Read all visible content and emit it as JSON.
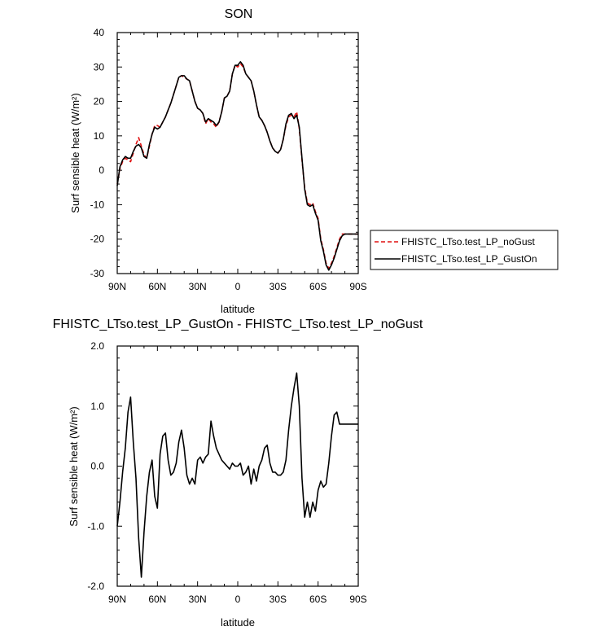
{
  "chart_data": [
    {
      "type": "line",
      "title": "SON",
      "xlabel": "latitude",
      "ylabel": "Surf sensible heat (W/m²)",
      "xlim": [
        90,
        -90
      ],
      "ylim": [
        -30,
        40
      ],
      "xticks": [
        90,
        60,
        30,
        0,
        -30,
        -60,
        -90
      ],
      "xticklabels": [
        "90N",
        "60N",
        "30N",
        "0",
        "30S",
        "60S",
        "90S"
      ],
      "yticks": [
        -30,
        -20,
        -10,
        0,
        10,
        20,
        30,
        40
      ],
      "yticklabels": [
        "-30",
        "-20",
        "-10",
        "0",
        "10",
        "20",
        "30",
        "40"
      ],
      "legend": "outside-right",
      "series": [
        {
          "name": "FHISTC_LTso.test_LP_noGust",
          "color": "#e01010",
          "dash": true,
          "x": [
            90,
            88,
            86,
            84,
            82,
            80,
            78,
            76,
            74,
            72,
            70,
            68,
            66,
            64,
            62,
            60,
            58,
            56,
            54,
            52,
            50,
            48,
            46,
            44,
            42,
            40,
            38,
            36,
            34,
            32,
            30,
            28,
            26,
            24,
            22,
            20,
            18,
            16,
            14,
            12,
            10,
            8,
            6,
            4,
            2,
            0,
            -2,
            -4,
            -6,
            -8,
            -10,
            -12,
            -14,
            -16,
            -18,
            -20,
            -22,
            -24,
            -26,
            -28,
            -30,
            -32,
            -34,
            -36,
            -38,
            -40,
            -42,
            -44,
            -46,
            -48,
            -50,
            -52,
            -54,
            -56,
            -58,
            -60,
            -62,
            -64,
            -66,
            -68,
            -70,
            -72,
            -74,
            -76,
            -78,
            -80,
            -82,
            -84,
            -86,
            -88,
            -90
          ],
          "y": [
            -4,
            0.5,
            2.5,
            3.5,
            3,
            2.5,
            5,
            7.5,
            9.5,
            7,
            4.5,
            3.5,
            7,
            10.5,
            13,
            13,
            12.5,
            14,
            15.5,
            17.5,
            19.5,
            22,
            24.5,
            27,
            27.5,
            27,
            26.5,
            26,
            23,
            20,
            18,
            17.5,
            16.5,
            13.5,
            15,
            14,
            13.5,
            12.5,
            14,
            17,
            21,
            21.5,
            23,
            28,
            30.5,
            30,
            31,
            30,
            28,
            27,
            26,
            23,
            19,
            15.5,
            14.5,
            13,
            11,
            8.5,
            6.5,
            5.5,
            5,
            6,
            9,
            13,
            15.5,
            16,
            15.5,
            17,
            12,
            3,
            -5,
            -9.5,
            -10,
            -9.5,
            -12,
            -14,
            -20,
            -23,
            -27,
            -28.5,
            -27,
            -25,
            -22.5,
            -20,
            -18.5,
            -18.5,
            -18.5,
            -18.5,
            -18.5,
            -18.5,
            -18.5
          ]
        },
        {
          "name": "FHISTC_LTso.test_LP_GustOn",
          "color": "#000000",
          "dash": false,
          "x": [
            90,
            88,
            86,
            84,
            82,
            80,
            78,
            76,
            74,
            72,
            70,
            68,
            66,
            64,
            62,
            60,
            58,
            56,
            54,
            52,
            50,
            48,
            46,
            44,
            42,
            40,
            38,
            36,
            34,
            32,
            30,
            28,
            26,
            24,
            22,
            20,
            18,
            16,
            14,
            12,
            10,
            8,
            6,
            4,
            2,
            0,
            -2,
            -4,
            -6,
            -8,
            -10,
            -12,
            -14,
            -16,
            -18,
            -20,
            -22,
            -24,
            -26,
            -28,
            -30,
            -32,
            -34,
            -36,
            -38,
            -40,
            -42,
            -44,
            -46,
            -48,
            -50,
            -52,
            -54,
            -56,
            -58,
            -60,
            -62,
            -64,
            -66,
            -68,
            -70,
            -72,
            -74,
            -76,
            -78,
            -80,
            -82,
            -84,
            -86,
            -88,
            -90
          ],
          "y": [
            -4.5,
            1,
            3,
            4,
            3.5,
            3.5,
            5.5,
            7,
            7.5,
            6.5,
            4,
            3.5,
            7.5,
            10.5,
            12.5,
            12,
            12.5,
            14,
            15.5,
            17.5,
            19.5,
            22,
            24.5,
            27,
            27.5,
            27.5,
            26.5,
            26,
            23,
            20,
            18,
            17.5,
            16.5,
            14,
            15,
            14.5,
            14,
            13,
            14,
            17,
            21,
            21.5,
            23,
            28,
            30.5,
            30.5,
            31.5,
            30.5,
            28,
            27,
            26,
            23,
            19,
            15.5,
            14.5,
            13,
            11,
            8.5,
            6.5,
            5.5,
            5,
            6,
            9,
            13.5,
            16,
            16.5,
            15,
            16,
            12.5,
            3.5,
            -5.5,
            -10,
            -10.5,
            -10,
            -12.5,
            -14.5,
            -20.5,
            -23.5,
            -27.5,
            -29,
            -27.5,
            -25.5,
            -23,
            -20.5,
            -19,
            -18.5,
            -18.5,
            -18.5,
            -18.5,
            -18.5,
            -18.5
          ]
        }
      ]
    },
    {
      "type": "line",
      "title": "FHISTC_LTso.test_LP_GustOn - FHISTC_LTso.test_LP_noGust",
      "xlabel": "latitude",
      "ylabel": "Surf sensible heat (W/m²)",
      "xlim": [
        90,
        -90
      ],
      "ylim": [
        -2.0,
        2.0
      ],
      "xticks": [
        90,
        60,
        30,
        0,
        -30,
        -60,
        -90
      ],
      "xticklabels": [
        "90N",
        "60N",
        "30N",
        "0",
        "30S",
        "60S",
        "90S"
      ],
      "yticks": [
        -2.0,
        -1.0,
        0.0,
        1.0,
        2.0
      ],
      "yticklabels": [
        "-2.0",
        "-1.0",
        "0.0",
        "1.0",
        "2.0"
      ],
      "series": [
        {
          "color": "#000000",
          "x": [
            90,
            88,
            86,
            84,
            82,
            80,
            78,
            76,
            74,
            72,
            70,
            68,
            66,
            64,
            62,
            60,
            58,
            56,
            54,
            52,
            50,
            48,
            46,
            44,
            42,
            40,
            38,
            36,
            34,
            32,
            30,
            28,
            26,
            24,
            22,
            20,
            18,
            16,
            14,
            12,
            10,
            8,
            6,
            4,
            2,
            0,
            -2,
            -4,
            -6,
            -8,
            -10,
            -12,
            -14,
            -16,
            -18,
            -20,
            -22,
            -24,
            -26,
            -28,
            -30,
            -32,
            -34,
            -36,
            -38,
            -40,
            -42,
            -44,
            -46,
            -48,
            -50,
            -52,
            -54,
            -56,
            -58,
            -60,
            -62,
            -64,
            -66,
            -68,
            -70,
            -72,
            -74,
            -76,
            -78,
            -80,
            -82,
            -84,
            -86,
            -88,
            -90
          ],
          "y": [
            -1.0,
            -0.6,
            -0.1,
            0.3,
            0.9,
            1.15,
            0.4,
            -0.2,
            -1.2,
            -1.85,
            -1.1,
            -0.5,
            -0.1,
            0.1,
            -0.5,
            -0.7,
            0.2,
            0.5,
            0.55,
            0.1,
            -0.15,
            -0.1,
            0.05,
            0.4,
            0.6,
            0.3,
            -0.15,
            -0.3,
            -0.2,
            -0.3,
            0.1,
            0.15,
            0.05,
            0.15,
            0.2,
            0.75,
            0.5,
            0.3,
            0.2,
            0.1,
            0.05,
            0.0,
            -0.05,
            0.05,
            0.0,
            0.0,
            0.05,
            -0.15,
            -0.1,
            0.0,
            -0.3,
            -0.05,
            -0.25,
            0.0,
            0.1,
            0.3,
            0.35,
            0.05,
            -0.1,
            -0.1,
            -0.15,
            -0.15,
            -0.1,
            0.1,
            0.6,
            1.0,
            1.3,
            1.55,
            1.0,
            -0.2,
            -0.85,
            -0.6,
            -0.85,
            -0.6,
            -0.75,
            -0.4,
            -0.25,
            -0.35,
            -0.3,
            0.05,
            0.5,
            0.85,
            0.9,
            0.7,
            0.7,
            0.7,
            0.7,
            0.7,
            0.7,
            0.7,
            0.7
          ]
        }
      ]
    }
  ]
}
